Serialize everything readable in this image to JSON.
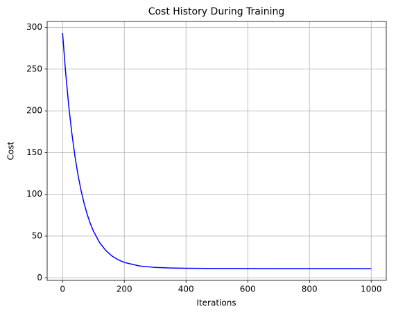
{
  "chart_data": {
    "type": "line",
    "title": "Cost History During Training",
    "xlabel": "Iterations",
    "ylabel": "Cost",
    "x": [
      0,
      10,
      20,
      30,
      40,
      50,
      60,
      70,
      80,
      90,
      100,
      120,
      140,
      160,
      180,
      200,
      250,
      300,
      350,
      400,
      500,
      600,
      700,
      800,
      900,
      1000
    ],
    "values": [
      293.1,
      245.6,
      206.0,
      173.2,
      145.9,
      123.2,
      104.4,
      88.8,
      75.7,
      64.9,
      55.9,
      42.2,
      32.7,
      26.1,
      21.6,
      18.4,
      14.1,
      12.4,
      11.7,
      11.4,
      11.1,
      11.06,
      11.02,
      10.98,
      10.96,
      10.94
    ],
    "color": "#0000ff",
    "xlim": [
      -49.95,
      1048.95
    ],
    "xticks": [
      0,
      200,
      400,
      600,
      800,
      1000
    ],
    "ylim": [
      -3.1,
      307.1
    ],
    "yticks": [
      0,
      50,
      100,
      150,
      200,
      250,
      300
    ],
    "grid": true
  }
}
